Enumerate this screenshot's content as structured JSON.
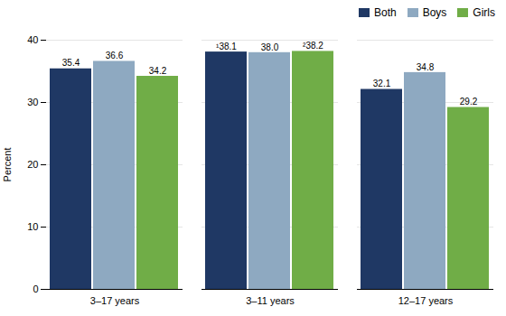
{
  "chart_data": {
    "type": "bar",
    "categories": [
      "3–17 years",
      "3–11 years",
      "12–17 years"
    ],
    "series": [
      {
        "name": "Both",
        "color": "#1f3864",
        "values": [
          35.4,
          38.1,
          32.1
        ],
        "value_labels": [
          "35.4",
          "¹38.1",
          "32.1"
        ]
      },
      {
        "name": "Boys",
        "color": "#8ea9c1",
        "values": [
          36.6,
          38.0,
          34.8
        ],
        "value_labels": [
          "36.6",
          "38.0",
          "34.8"
        ]
      },
      {
        "name": "Girls",
        "color": "#70ad47",
        "values": [
          34.2,
          38.2,
          29.2
        ],
        "value_labels": [
          "34.2",
          "²38.2",
          "29.2"
        ]
      }
    ],
    "ylabel": "Percent",
    "ylim": [
      0,
      40
    ],
    "yticks": [
      0,
      10,
      20,
      30,
      40
    ],
    "grid": true,
    "legend": "upper right",
    "data_labels": true
  }
}
